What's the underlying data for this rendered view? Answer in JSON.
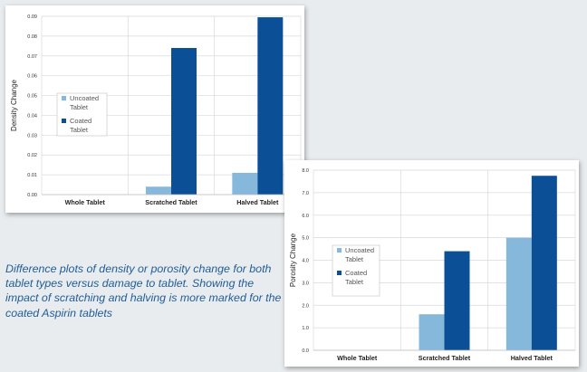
{
  "caption": "Difference plots of density or porosity change for both tablet types versus damage to tablet. Showing the impact of scratching and halving is more marked for the coated Aspirin tablets",
  "colors": {
    "uncoated": "#86b8dc",
    "coated": "#0b4f96",
    "grid": "#d9d9d9",
    "caption": "#1f5c99"
  },
  "chart_data": [
    {
      "type": "bar",
      "title": "",
      "xlabel": "",
      "ylabel": "Density Change",
      "categories": [
        "Whole Tablet",
        "Scratched Tablet",
        "Halved Tablet"
      ],
      "series": [
        {
          "name": "Uncoated Tablet",
          "values": [
            0.0,
            0.004,
            0.011
          ]
        },
        {
          "name": "Coated Tablet",
          "values": [
            0.0,
            0.074,
            0.0895
          ]
        }
      ],
      "ylim": [
        0,
        0.09
      ],
      "yticks": [
        "0.00",
        "0.01",
        "0.02",
        "0.03",
        "0.04",
        "0.05",
        "0.06",
        "0.07",
        "0.08",
        "0.09"
      ],
      "grid": true,
      "legend": "center-left"
    },
    {
      "type": "bar",
      "title": "",
      "xlabel": "",
      "ylabel": "Porosity Change",
      "categories": [
        "Whole Tablet",
        "Scratched Tablet",
        "Halved Tablet"
      ],
      "series": [
        {
          "name": "Uncoated Tablet",
          "values": [
            0.0,
            1.6,
            5.0
          ]
        },
        {
          "name": "Coated Tablet",
          "values": [
            0.0,
            4.4,
            7.75
          ]
        }
      ],
      "ylim": [
        0,
        8
      ],
      "yticks": [
        "0.0",
        "1.0",
        "2.0",
        "3.0",
        "4.0",
        "5.0",
        "6.0",
        "7.0",
        "8.0"
      ],
      "grid": true,
      "legend": "center-left"
    }
  ]
}
